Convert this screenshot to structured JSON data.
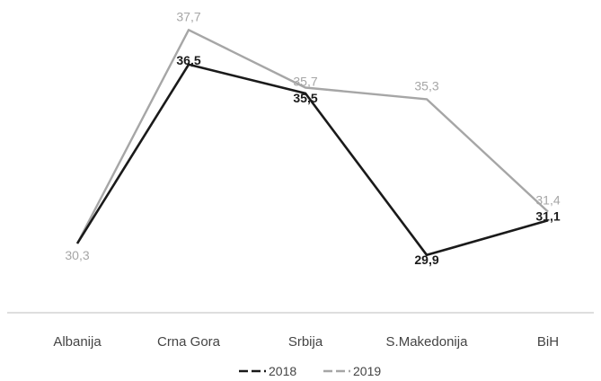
{
  "chart_data": {
    "type": "line",
    "title": "",
    "xlabel": "",
    "ylabel": "",
    "categories": [
      "Albanija",
      "Crna Gora",
      "Srbija",
      "S.Makedonija",
      "BiH"
    ],
    "series": [
      {
        "name": "2018",
        "values": [
          null,
          36.5,
          35.5,
          29.9,
          31.1
        ],
        "labels": [
          "",
          "36,5",
          "35,5",
          "29,9",
          "31,1"
        ],
        "color": "#1a1a1a"
      },
      {
        "name": "2019",
        "values": [
          30.3,
          37.7,
          35.7,
          35.3,
          31.4
        ],
        "labels": [
          "30,3",
          "37,7",
          "35,7",
          "35,3",
          "31,4"
        ],
        "color": "#a6a6a6"
      }
    ],
    "ylim": [
      28.4,
      38.3
    ],
    "grid": false,
    "legend_position": "bottom"
  }
}
